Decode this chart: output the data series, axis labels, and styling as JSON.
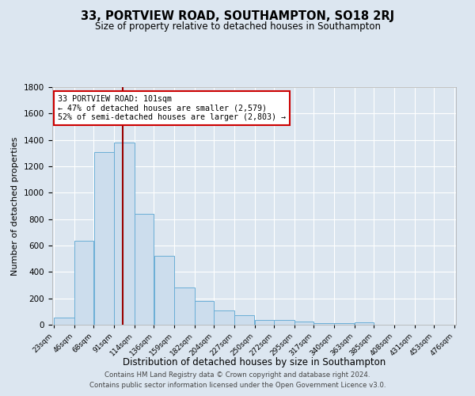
{
  "title": "33, PORTVIEW ROAD, SOUTHAMPTON, SO18 2RJ",
  "subtitle": "Size of property relative to detached houses in Southampton",
  "xlabel": "Distribution of detached houses by size in Southampton",
  "ylabel": "Number of detached properties",
  "footer_line1": "Contains HM Land Registry data © Crown copyright and database right 2024.",
  "footer_line2": "Contains public sector information licensed under the Open Government Licence v3.0.",
  "annotation_line1": "33 PORTVIEW ROAD: 101sqm",
  "annotation_line2": "← 47% of detached houses are smaller (2,579)",
  "annotation_line3": "52% of semi-detached houses are larger (2,803) →",
  "property_size": 101,
  "bar_edges": [
    23,
    46,
    68,
    91,
    114,
    136,
    159,
    182,
    204,
    227,
    250,
    272,
    295,
    317,
    340,
    363,
    385,
    408,
    431,
    453,
    476
  ],
  "bar_heights": [
    57,
    638,
    1307,
    1381,
    843,
    524,
    285,
    183,
    108,
    72,
    37,
    38,
    26,
    14,
    10,
    17,
    0,
    0,
    0,
    0
  ],
  "bar_color": "#ccdded",
  "bar_edge_color": "#6aaed6",
  "vline_color": "#990000",
  "vline_x": 101,
  "background_color": "#dce6f0",
  "plot_bg_color": "#dce6f0",
  "annotation_box_color": "#ffffff",
  "annotation_box_edge": "#cc0000",
  "grid_color": "#ffffff",
  "ylim": [
    0,
    1800
  ],
  "yticks": [
    0,
    200,
    400,
    600,
    800,
    1000,
    1200,
    1400,
    1600,
    1800
  ]
}
